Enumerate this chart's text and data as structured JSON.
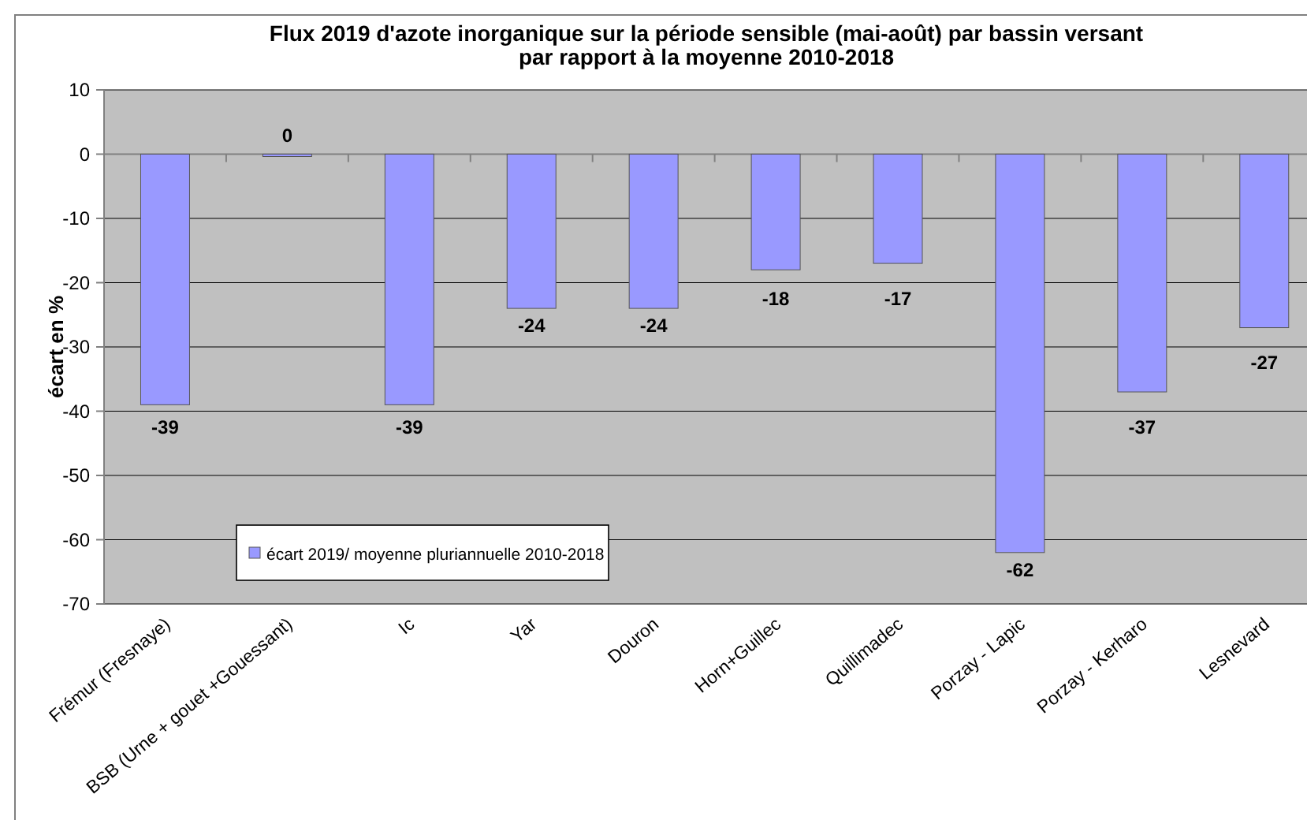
{
  "chart_data": {
    "type": "bar",
    "title": "Flux 2019 d'azote inorganique sur la période sensible (mai-août) par bassin versant\npar rapport à la moyenne 2010-2018",
    "ylabel": "écart en %",
    "categories": [
      "Frémur (Fresnaye)",
      "BSB (Urne + gouet +Gouessant)",
      "Ic",
      "Yar",
      "Douron",
      "Horn+Guillec",
      "Quillimadec",
      "Porzay - Lapic",
      "Porzay - Kerharo",
      "Lesnevard"
    ],
    "series": [
      {
        "name": "écart 2019/ moyenne pluriannuelle 2010-2018",
        "color": "#9999ff",
        "values": [
          -39,
          0,
          -39,
          -24,
          -24,
          -18,
          -17,
          -62,
          -37,
          -27
        ]
      }
    ],
    "ylim": [
      -70,
      10
    ],
    "yticks": [
      10,
      0,
      -10,
      -20,
      -30,
      -40,
      -50,
      -60,
      -70
    ],
    "grid": "y",
    "legend": "bottom left",
    "data_labels": true
  }
}
